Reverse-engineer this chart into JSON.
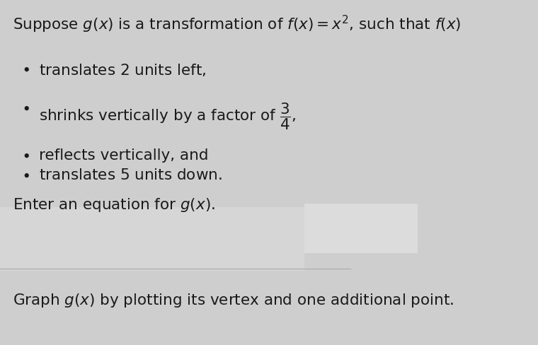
{
  "background_color": "#cecece",
  "input_area_color": "#d8d8d8",
  "input_box_right_color": "#e0e0e0",
  "divider_color": "#b0b0b0",
  "font_color": "#1a1a1a",
  "title_line": "Suppose $g(x)$ is a transformation of $f(x) = x^2$, such that $f(x)$",
  "bullet1": "translates $2$ units left,",
  "bullet2": "shrinks vertically by a factor of $\\dfrac{3}{4}$,",
  "bullet3": "reflects vertically, and",
  "bullet4": "translates $5$ units down.",
  "enter_eq_text": "Enter an equation for $g(x)$.",
  "graph_text": "Graph $g(x)$ by plotting its vertex and one additional point.",
  "title_fontsize": 15.5,
  "bullet_fontsize": 15.5,
  "body_fontsize": 15.5
}
